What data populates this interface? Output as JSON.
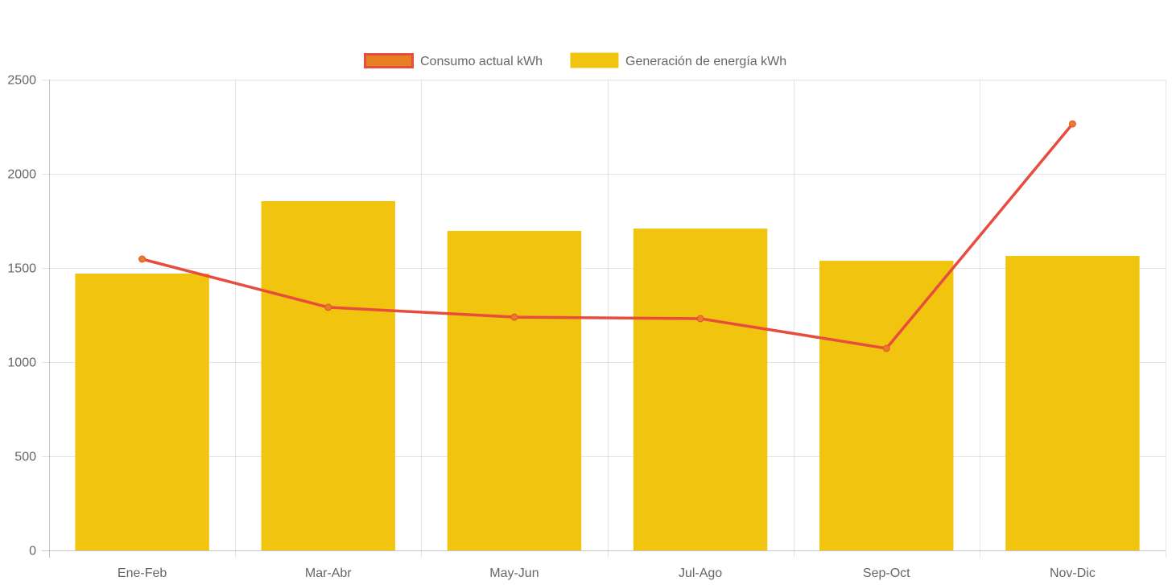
{
  "chart_data": {
    "type": "bar",
    "title": "",
    "xlabel": "",
    "ylabel": "",
    "categories": [
      "Ene-Feb",
      "Mar-Abr",
      "May-Jun",
      "Jul-Ago",
      "Sep-Oct",
      "Nov-Dic"
    ],
    "ylim": [
      0,
      2500
    ],
    "yticks": [
      0,
      500,
      1000,
      1500,
      2000,
      2500
    ],
    "grid": true,
    "legend_position": "top-center",
    "series": [
      {
        "name": "Consumo actual kWh",
        "type": "line",
        "values": [
          1547,
          1291,
          1239,
          1231,
          1073,
          2265
        ],
        "color": "#E74C3C",
        "point_color": "#E67E22"
      },
      {
        "name": "Generación de energía kWh",
        "type": "bar",
        "values": [
          1470,
          1855,
          1697,
          1709,
          1538,
          1564
        ],
        "color": "#F1C40F"
      }
    ]
  }
}
